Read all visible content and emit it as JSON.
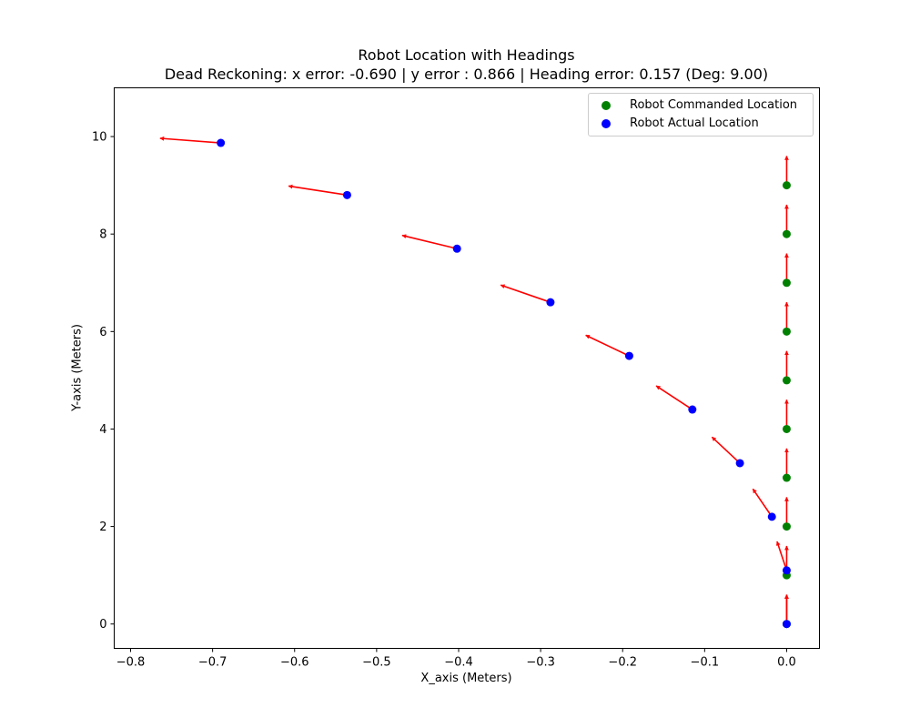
{
  "chart_data": {
    "type": "scatter",
    "title": "Robot Location with Headings",
    "subtitle": "Dead Reckoning: x error: -0.690 | y error : 0.866 | Heading error: 0.157 (Deg: 9.00)",
    "xlabel": "X_axis (Meters)",
    "ylabel": "Y-axis (Meters)",
    "xlim": [
      -0.82,
      0.04
    ],
    "ylim": [
      -0.5,
      11.0
    ],
    "x_ticks": [
      -0.8,
      -0.7,
      -0.6,
      -0.5,
      -0.4,
      -0.3,
      -0.2,
      -0.1,
      0.0
    ],
    "x_tick_labels": [
      "−0.8",
      "−0.7",
      "−0.6",
      "−0.5",
      "−0.4",
      "−0.3",
      "−0.2",
      "−0.1",
      "0.0"
    ],
    "y_ticks": [
      0,
      2,
      4,
      6,
      8,
      10
    ],
    "y_tick_labels": [
      "0",
      "2",
      "4",
      "6",
      "8",
      "10"
    ],
    "grid": false,
    "legend_position": "top-right",
    "series": [
      {
        "name": "Robot Commanded Location",
        "color": "#008000",
        "x": [
          0,
          0,
          0,
          0,
          0,
          0,
          0,
          0,
          0,
          0
        ],
        "y": [
          0,
          1,
          2,
          3,
          4,
          5,
          6,
          7,
          8,
          9
        ]
      },
      {
        "name": "Robot Actual Location",
        "color": "#0000ff",
        "x": [
          0.0,
          0.0,
          -0.018,
          -0.057,
          -0.115,
          -0.192,
          -0.288,
          -0.402,
          -0.536,
          -0.69
        ],
        "y": [
          0.0,
          1.1,
          2.2,
          3.3,
          4.4,
          5.5,
          6.6,
          7.7,
          8.8,
          9.87
        ]
      }
    ],
    "heading_arrows": {
      "color": "#ff0000",
      "length": 0.6,
      "commanded_heading_deg": [
        90,
        90,
        90,
        90,
        90,
        90,
        90,
        90,
        90,
        90
      ],
      "actual_heading_deg": [
        90,
        99,
        108,
        117,
        126,
        135,
        144,
        153,
        162,
        171
      ]
    }
  }
}
